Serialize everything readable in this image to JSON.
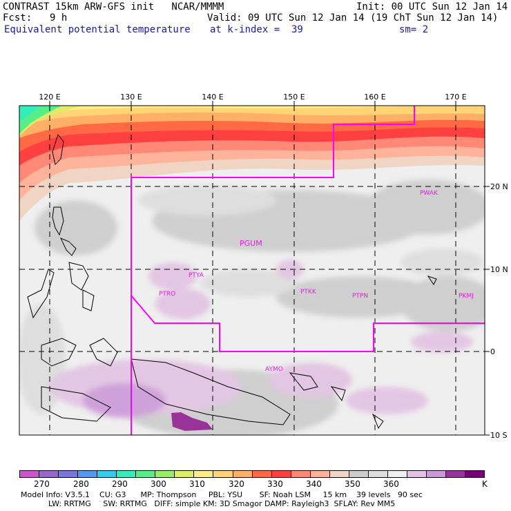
{
  "header": {
    "title_left": "CONTRAST 15km ARW-GFS init   NCAR/MMMM",
    "init": "Init: 00 UTC Sun 12 Jan 14",
    "fcst_label": "Fcst:",
    "fcst_value": "9 h",
    "valid": "Valid: 09 UTC Sun 12 Jan 14 (19 ChT Sun 12 Jan 14)",
    "field_name": "Equivalent potential temperature",
    "level": "at k-index =  39",
    "smoothing": "sm= 2"
  },
  "map": {
    "lon_labels": [
      "120 E",
      "130 E",
      "140 E",
      "150 E",
      "160 E",
      "170 E"
    ],
    "lat_labels": [
      "20 N",
      "10 N",
      "0",
      "10 S"
    ],
    "stations": [
      "PWAK",
      "PGUM",
      "PTYA",
      "PTRO",
      "PTKK",
      "PTPN",
      "PKMJ",
      "AYMO"
    ],
    "station_color": "#e020e0",
    "domain_color": "#ff00ff"
  },
  "colorbar": {
    "colors": [
      "#cc55cc",
      "#9966cc",
      "#7777dd",
      "#5599ee",
      "#33ccee",
      "#33eebb",
      "#55ee88",
      "#99ee66",
      "#ddee66",
      "#ffee88",
      "#ffd477",
      "#ffb066",
      "#ff6a44",
      "#ff4040",
      "#ff8877",
      "#ffb39a",
      "#f0d4c4",
      "#cccccc",
      "#dddddd",
      "#f0f0f0",
      "#e2c2e2",
      "#cc99d8",
      "#993399",
      "#770077"
    ],
    "labels": [
      "270",
      "280",
      "290",
      "300",
      "310",
      "320",
      "330",
      "340",
      "350",
      "360"
    ],
    "unit": "K"
  },
  "footer": {
    "line1": "Model Info: V3.5.1    CU: G3      MP: Thompson     PBL: YSU       SF: Noah LSM     15 km    39 levels   90 sec",
    "line2": "LW: RRTMG     SW: RRTMG   DIFF: simple KM: 3D Smagor DAMP: Rayleigh3  SFLAY: Rev MM5"
  }
}
